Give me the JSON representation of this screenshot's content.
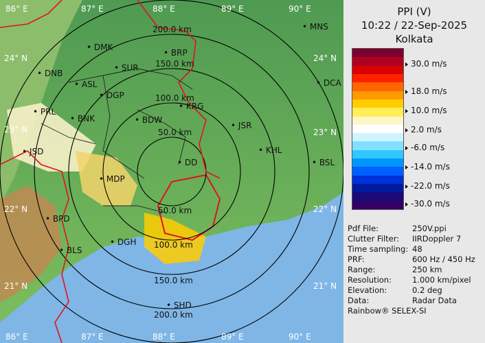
{
  "map": {
    "lon_labels": [
      "86° E",
      "87° E",
      "88° E",
      "89° E",
      "90° E"
    ],
    "lat_labels": [
      "24° N",
      "23° N",
      "22° N",
      "21° N"
    ],
    "ring_labels": [
      "50.0 km",
      "100.0 km",
      "150.0 km",
      "200.0 km"
    ],
    "cities": [
      "MNS",
      "BRP",
      "DMK",
      "DNB",
      "SUR",
      "ASL",
      "DGP",
      "DCA",
      "KRG",
      "PRL",
      "BNK",
      "BDW",
      "JSR",
      "KHL",
      "JSD",
      "DD",
      "MDP",
      "BSL",
      "BPD",
      "DGH",
      "BLS",
      "SHD"
    ],
    "colors": {
      "land": "#6fa86a",
      "sea": "#7fb6e6",
      "border": "#e0141a",
      "rings": "#000000"
    }
  },
  "panel": {
    "title": "PPI (V)",
    "datetime": "10:22 / 22-Sep-2025",
    "station": "Kolkata",
    "legend": {
      "labels": [
        "30.0 m/s",
        "18.0 m/s",
        "10.0 m/s",
        "2.0 m/s",
        "-6.0 m/s",
        "-14.0 m/s",
        "-22.0 m/s",
        "-30.0 m/s"
      ],
      "colors": [
        "#7a0030",
        "#b00020",
        "#d80000",
        "#ff2000",
        "#ff6600",
        "#ff9900",
        "#ffcc00",
        "#ffee55",
        "#fff6c8",
        "#ffffff",
        "#d0f4ff",
        "#80e0ff",
        "#30c8ff",
        "#0096ff",
        "#0060ff",
        "#0030d8",
        "#001aa0",
        "#1a0a78",
        "#330066"
      ]
    },
    "meta": [
      {
        "k": "Pdf File:",
        "v": "250V.ppi"
      },
      {
        "k": "Clutter Filter:",
        "v": "IIRDoppler 7"
      },
      {
        "k": "Time sampling:",
        "v": "48"
      },
      {
        "k": "PRF:",
        "v": "600 Hz / 450 Hz"
      },
      {
        "k": "Range:",
        "v": "250 km"
      },
      {
        "k": "Resolution:",
        "v": "1.000 km/pixel"
      },
      {
        "k": "Elevation:",
        "v": "0.2 deg"
      },
      {
        "k": "Data:",
        "v": "Radar Data"
      }
    ],
    "footer": "Rainbow® SELEX-SI"
  }
}
